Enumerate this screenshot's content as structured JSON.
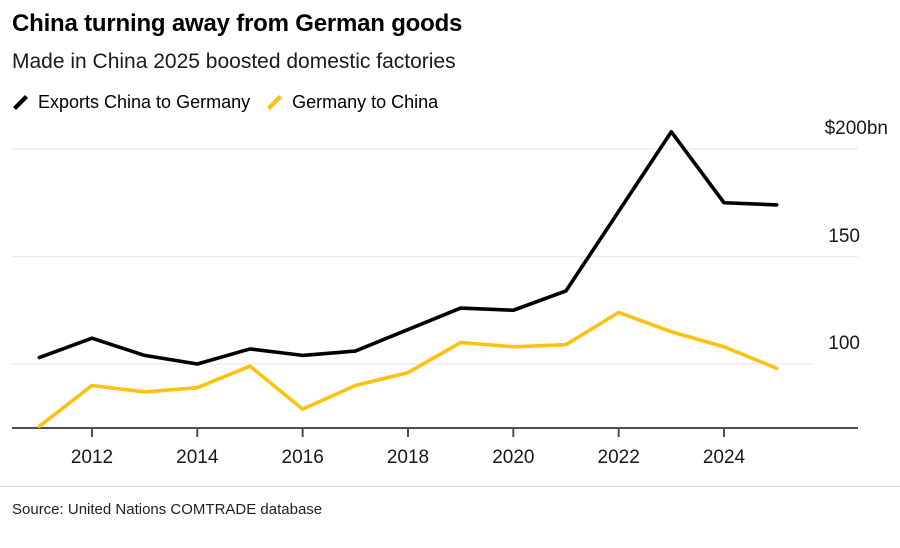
{
  "header": {
    "title": "China turning away from German goods",
    "subtitle": "Made in China 2025 boosted domestic factories"
  },
  "legend": [
    {
      "label": "Exports China to Germany",
      "color": "#000000"
    },
    {
      "label": "Germany to China",
      "color": "#fdc110"
    }
  ],
  "chart_data": {
    "type": "line",
    "x": [
      2011,
      2012,
      2013,
      2014,
      2015,
      2016,
      2017,
      2018,
      2019,
      2020,
      2021,
      2022,
      2023,
      2024,
      2025
    ],
    "series": [
      {
        "name": "Exports China to Germany",
        "color": "#000000",
        "values": [
          103,
          112,
          104,
          100,
          107,
          104,
          106,
          116,
          126,
          125,
          134,
          171,
          208,
          175,
          174
        ]
      },
      {
        "name": "Germany to China",
        "color": "#fdc110",
        "values": [
          71,
          90,
          87,
          89,
          99,
          79,
          90,
          96,
          110,
          108,
          109,
          124,
          115,
          108,
          98
        ]
      }
    ],
    "unit": "$bn",
    "y_ticks": [
      {
        "value": 100,
        "label": "100"
      },
      {
        "value": 150,
        "label": "150"
      },
      {
        "value": 200,
        "label": "$200bn"
      }
    ],
    "x_ticks": [
      2012,
      2014,
      2016,
      2018,
      2020,
      2022,
      2024
    ],
    "ylim": [
      70,
      215
    ],
    "xlim": [
      2011,
      2025
    ],
    "grid": true,
    "legend_position": "top-left"
  },
  "source": "Source: United Nations COMTRADE database",
  "colors": {
    "series_black": "#000000",
    "series_yellow": "#fdc110",
    "gridline": "#e9e9e9",
    "axis": "#4d4d4d",
    "text": "#16181d",
    "background": "#ffffff"
  }
}
